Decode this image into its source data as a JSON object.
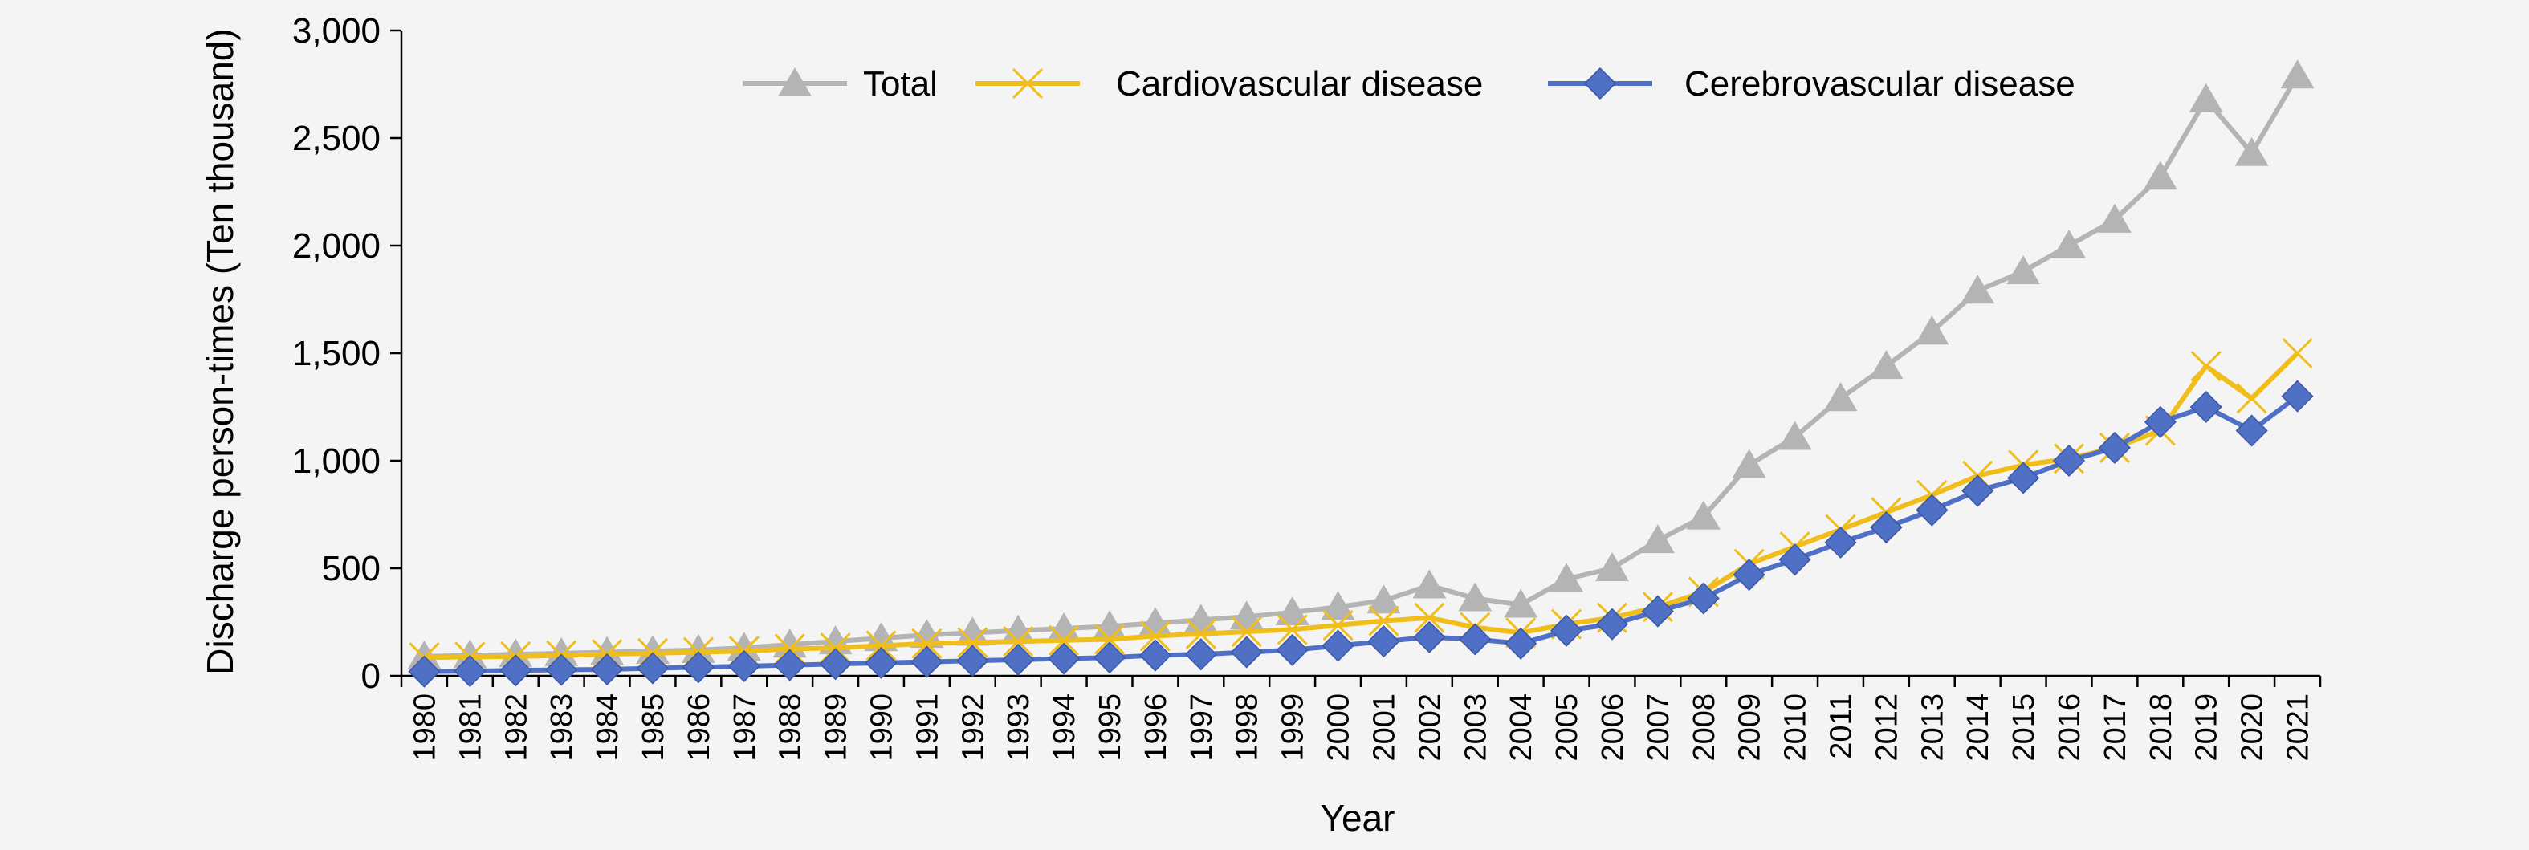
{
  "chart_data": {
    "type": "line",
    "title": "",
    "xlabel": "Year",
    "ylabel": "Discharge person-times (Ten thousand)",
    "ylim": [
      0,
      3000
    ],
    "yticks": [
      0,
      500,
      1000,
      1500,
      2000,
      2500,
      3000
    ],
    "ytick_labels": [
      "0",
      "500",
      "1,000",
      "1,500",
      "2,000",
      "2,500",
      "3,000"
    ],
    "grid": false,
    "legend_position": "top",
    "categories": [
      "1980",
      "1981",
      "1982",
      "1983",
      "1984",
      "1985",
      "1986",
      "1987",
      "1988",
      "1989",
      "1990",
      "1991",
      "1992",
      "1993",
      "1994",
      "1995",
      "1996",
      "1997",
      "1998",
      "1999",
      "2000",
      "2001",
      "2002",
      "2003",
      "2004",
      "2005",
      "2006",
      "2007",
      "2008",
      "2009",
      "2010",
      "2011",
      "2012",
      "2013",
      "2014",
      "2015",
      "2016",
      "2017",
      "2018",
      "2019",
      "2020",
      "2021"
    ],
    "series": [
      {
        "name": "Total",
        "color": "#b4b4b4",
        "marker": "triangle",
        "values": [
          90,
          95,
          100,
          105,
          110,
          115,
          120,
          130,
          145,
          160,
          175,
          190,
          200,
          210,
          220,
          230,
          245,
          260,
          275,
          295,
          320,
          350,
          420,
          360,
          330,
          450,
          500,
          630,
          740,
          980,
          1110,
          1290,
          1440,
          1600,
          1790,
          1880,
          2000,
          2120,
          2320,
          2680,
          2430,
          2790
        ]
      },
      {
        "name": "Cardiovascular disease",
        "color": "#f0bd1a",
        "marker": "x",
        "values": [
          85,
          88,
          90,
          95,
          100,
          105,
          110,
          115,
          125,
          130,
          140,
          150,
          155,
          160,
          165,
          170,
          185,
          195,
          205,
          215,
          235,
          255,
          270,
          225,
          200,
          240,
          270,
          320,
          390,
          520,
          600,
          680,
          760,
          840,
          930,
          980,
          1010,
          1060,
          1140,
          1440,
          1290,
          1500
        ]
      },
      {
        "name": "Cerebrovascular disease",
        "color": "#4f70c4",
        "marker": "diamond",
        "values": [
          20,
          22,
          25,
          28,
          30,
          35,
          40,
          45,
          50,
          55,
          60,
          65,
          70,
          75,
          80,
          85,
          95,
          100,
          110,
          120,
          140,
          160,
          180,
          170,
          150,
          210,
          240,
          300,
          360,
          470,
          540,
          620,
          690,
          770,
          860,
          920,
          1000,
          1060,
          1180,
          1250,
          1140,
          1300
        ]
      }
    ]
  }
}
